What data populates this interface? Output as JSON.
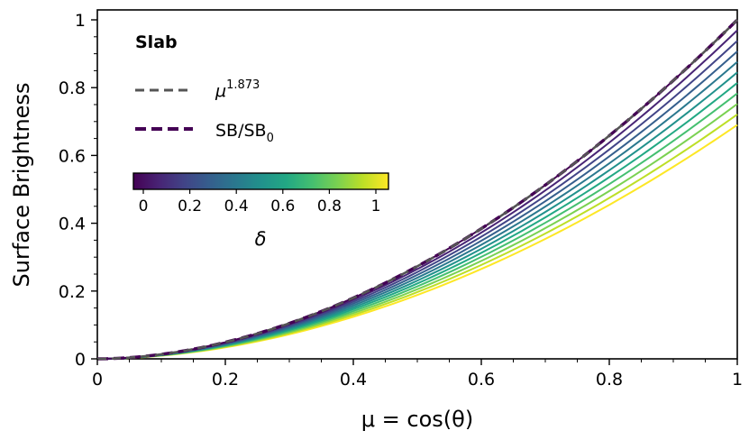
{
  "chart_data": {
    "type": "line",
    "title": "",
    "xlabel": "μ = cos(θ)",
    "ylabel": "Surface Brightness",
    "xlim": [
      0,
      1
    ],
    "ylim": [
      0,
      1.03
    ],
    "x_ticks": [
      0,
      0.2,
      0.4,
      0.6,
      0.8,
      1
    ],
    "x_tick_labels": [
      "0",
      "0.2",
      "0.4",
      "0.6",
      "0.8",
      "1"
    ],
    "y_ticks": [
      0,
      0.2,
      0.4,
      0.6,
      0.8,
      1
    ],
    "y_tick_labels": [
      "0",
      "0.2",
      "0.4",
      "0.6",
      "0.8",
      "1"
    ],
    "grid": false,
    "legend": {
      "title": "Slab",
      "placement": "top-left",
      "entries": [
        {
          "label_base": "μ",
          "label_exponent": "1.873",
          "color": "#555555",
          "style": "dashed"
        },
        {
          "label_base": "SB/SB",
          "label_subscript": "0",
          "color": "#440154",
          "style": "dashed"
        }
      ]
    },
    "reference_curve": {
      "exponent": 1.873,
      "color": "#555555",
      "style": "dashed"
    },
    "series_note_dashed_purple_equals_delta_0": true,
    "series": [
      {
        "delta": 0.0,
        "value_at_mu_1": 1.0,
        "color": "#440154"
      },
      {
        "delta": 0.1,
        "value_at_mu_1": 0.969,
        "color": "#482475"
      },
      {
        "delta": 0.2,
        "value_at_mu_1": 0.938,
        "color": "#414487"
      },
      {
        "delta": 0.3,
        "value_at_mu_1": 0.907,
        "color": "#355f8d"
      },
      {
        "delta": 0.4,
        "value_at_mu_1": 0.876,
        "color": "#2a788e"
      },
      {
        "delta": 0.5,
        "value_at_mu_1": 0.845,
        "color": "#21918c"
      },
      {
        "delta": 0.6,
        "value_at_mu_1": 0.814,
        "color": "#22a884"
      },
      {
        "delta": 0.7,
        "value_at_mu_1": 0.783,
        "color": "#44bf70"
      },
      {
        "delta": 0.8,
        "value_at_mu_1": 0.752,
        "color": "#7ad151"
      },
      {
        "delta": 0.9,
        "value_at_mu_1": 0.721,
        "color": "#bddf26"
      },
      {
        "delta": 1.0,
        "value_at_mu_1": 0.69,
        "color": "#fde725"
      }
    ],
    "colorbar": {
      "label": "δ",
      "colormap": "viridis",
      "ticks": [
        0,
        0.2,
        0.4,
        0.6,
        0.8,
        1
      ],
      "tick_labels": [
        "0",
        "0.2",
        "0.4",
        "0.6",
        "0.8",
        "1"
      ],
      "range": [
        0,
        1
      ]
    }
  }
}
